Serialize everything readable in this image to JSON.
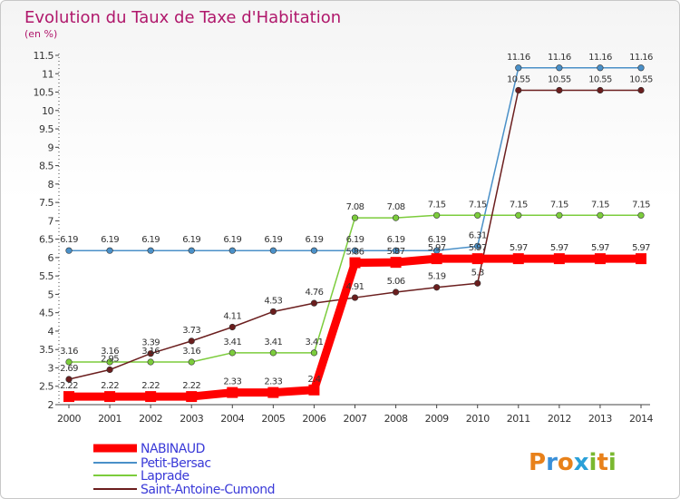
{
  "chart_data": {
    "type": "line",
    "title": "Evolution du Taux de Taxe d'Habitation",
    "subtitle": "(en %)",
    "x": [
      "2000",
      "2001",
      "2002",
      "2003",
      "2004",
      "2005",
      "2006",
      "2007",
      "2008",
      "2009",
      "2010",
      "2011",
      "2012",
      "2013",
      "2014"
    ],
    "ylim": [
      2,
      11.5
    ],
    "yticks": [
      "2",
      "2.5",
      "3",
      "3.5",
      "4",
      "4.5",
      "5",
      "5.5",
      "6",
      "6.5",
      "7",
      "7.5",
      "8",
      "8.5",
      "9",
      "9.5",
      "10",
      "10.5",
      "11",
      "11.5"
    ],
    "grid": false,
    "legend_position": "bottom-left",
    "series": [
      {
        "name": "NABINAUD",
        "color": "#ff0000",
        "values": [
          2.22,
          2.22,
          2.22,
          2.22,
          2.33,
          2.33,
          2.4,
          5.86,
          5.87,
          5.97,
          5.97,
          5.97,
          5.97,
          5.97,
          5.97
        ],
        "labels": [
          "2.22",
          "2.22",
          "2.22",
          "2.22",
          "2.33",
          "2.33",
          "2.4",
          "5.86",
          "5.87",
          "5.97",
          "5.97",
          "5.97",
          "5.97",
          "5.97",
          "5.97"
        ]
      },
      {
        "name": "Petit-Bersac",
        "color": "#4a90c8",
        "values": [
          6.19,
          6.19,
          6.19,
          6.19,
          6.19,
          6.19,
          6.19,
          6.19,
          6.19,
          6.19,
          6.31,
          11.16,
          11.16,
          11.16,
          11.16
        ],
        "labels": [
          "6.19",
          "6.19",
          "6.19",
          "6.19",
          "6.19",
          "6.19",
          "6.19",
          "6.19",
          "6.19",
          "6.19",
          "6.31",
          "11.16",
          "11.16",
          "11.16",
          "11.16"
        ]
      },
      {
        "name": "Laprade",
        "color": "#7ccc3c",
        "values": [
          3.16,
          3.16,
          3.16,
          3.16,
          3.41,
          3.41,
          3.41,
          7.08,
          7.08,
          7.15,
          7.15,
          7.15,
          7.15,
          7.15,
          7.15
        ],
        "labels": [
          "3.16",
          "3.16",
          "3.16",
          "3.16",
          "3.41",
          "3.41",
          "3.41",
          "7.08",
          "7.08",
          "7.15",
          "7.15",
          "7.15",
          "7.15",
          "7.15",
          "7.15"
        ]
      },
      {
        "name": "Saint-Antoine-Cumond",
        "color": "#6b1e1e",
        "values": [
          2.69,
          2.95,
          3.39,
          3.73,
          4.11,
          4.53,
          4.76,
          4.91,
          5.06,
          5.19,
          5.3,
          10.55,
          10.55,
          10.55,
          10.55
        ],
        "labels": [
          "2.69",
          "2.95",
          "3.39",
          "3.73",
          "4.11",
          "4.53",
          "4.76",
          "4.91",
          "5.06",
          "5.19",
          "5.3",
          "10.55",
          "10.55",
          "10.55",
          "10.55"
        ]
      }
    ]
  },
  "logo": {
    "text": "Proxiti"
  }
}
